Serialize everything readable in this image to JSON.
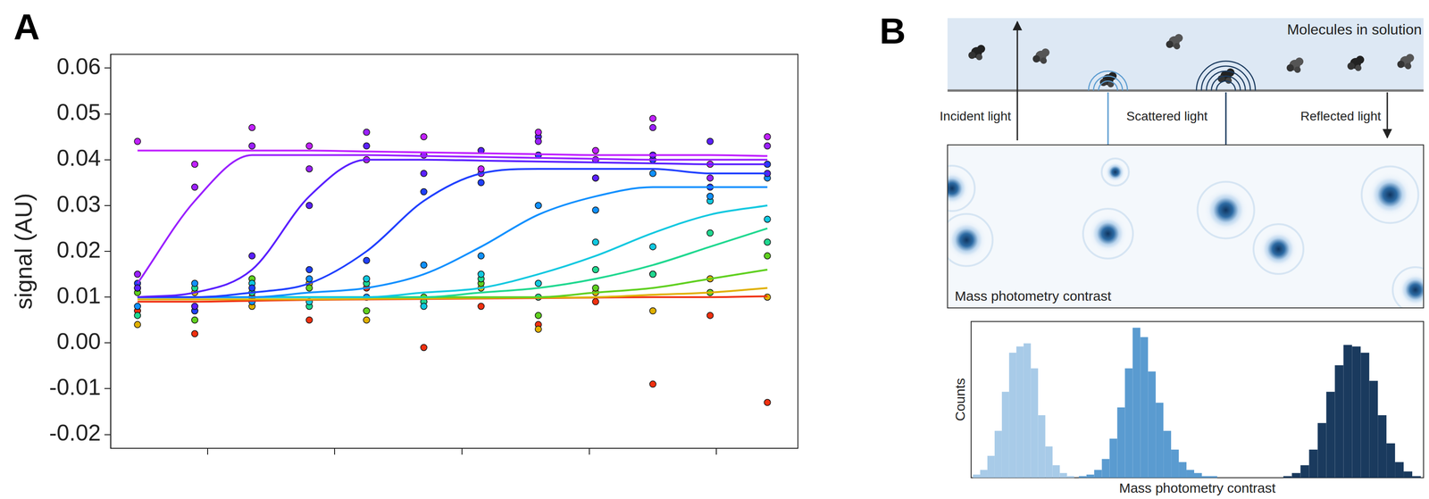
{
  "chart_data": {
    "panel": "A",
    "type": "scatter",
    "y_label": "signal (AU)",
    "x": [
      0.45,
      0.9,
      1.35,
      1.8,
      2.25,
      2.7,
      3.15,
      3.6,
      4.05,
      4.5,
      4.95,
      5.4
    ],
    "xlim": [
      0.24,
      5.64
    ],
    "xticks": [
      1,
      2,
      3,
      4,
      5
    ],
    "ylim": [
      -0.023,
      0.063
    ],
    "yticks": [
      -0.02,
      -0.01,
      {
        "value": 0,
        "label": "0.00"
      },
      0.01,
      0.02,
      0.03,
      0.04,
      0.05,
      0.06
    ],
    "tick_labels": "y",
    "grid": false,
    "marker": "circle",
    "line_style": "solid",
    "series": [
      {
        "color": "#c020ff",
        "values": [
          0.044,
          0.039,
          0.047,
          0.043,
          0.04,
          0.045,
          0.038,
          0.046,
          0.042,
          0.049,
          0.039,
          0.045
        ],
        "fit": [
          0.042,
          0.042,
          0.042,
          0.042,
          0.0418,
          0.0416,
          0.0414,
          0.0412,
          0.041,
          0.041,
          0.041,
          0.0408
        ]
      },
      {
        "color": "#9a20ff",
        "values": [
          0.015,
          0.034,
          0.043,
          0.038,
          0.046,
          0.041,
          0.037,
          0.044,
          0.04,
          0.047,
          0.036,
          0.043
        ],
        "fit": [
          0.013,
          0.031,
          0.041,
          0.041,
          0.041,
          0.0408,
          0.0406,
          0.0404,
          0.0402,
          0.04,
          0.04,
          0.04
        ]
      },
      {
        "color": "#5a20ff",
        "values": [
          0.012,
          0.008,
          0.019,
          0.03,
          0.043,
          0.037,
          0.042,
          0.045,
          0.036,
          0.041,
          0.044,
          0.037
        ],
        "fit": [
          0.01,
          0.011,
          0.016,
          0.032,
          0.04,
          0.04,
          0.0398,
          0.0396,
          0.0394,
          0.0392,
          0.039,
          0.039
        ]
      },
      {
        "color": "#2040ff",
        "values": [
          0.013,
          0.007,
          0.012,
          0.016,
          0.018,
          0.033,
          0.035,
          0.041,
          0.036,
          0.04,
          0.034,
          0.039
        ],
        "fit": [
          0.01,
          0.01,
          0.011,
          0.013,
          0.02,
          0.031,
          0.037,
          0.038,
          0.038,
          0.038,
          0.037,
          0.037
        ]
      },
      {
        "color": "#1090ff",
        "values": [
          0.008,
          0.013,
          0.009,
          0.014,
          0.01,
          0.017,
          0.019,
          0.03,
          0.029,
          0.037,
          0.032,
          0.036
        ],
        "fit": [
          0.01,
          0.01,
          0.01,
          0.011,
          0.012,
          0.015,
          0.021,
          0.028,
          0.032,
          0.034,
          0.034,
          0.034
        ]
      },
      {
        "color": "#10c8e0",
        "values": [
          0.012,
          0.007,
          0.013,
          0.009,
          0.014,
          0.008,
          0.015,
          0.013,
          0.022,
          0.021,
          0.031,
          0.027
        ],
        "fit": [
          0.01,
          0.01,
          0.01,
          0.01,
          0.01,
          0.011,
          0.012,
          0.015,
          0.019,
          0.024,
          0.028,
          0.03
        ]
      },
      {
        "color": "#20d890",
        "values": [
          0.006,
          0.012,
          0.011,
          0.008,
          0.013,
          0.009,
          0.014,
          0.01,
          0.016,
          0.015,
          0.024,
          0.022
        ],
        "fit": [
          0.01,
          0.01,
          0.01,
          0.01,
          0.01,
          0.01,
          0.011,
          0.012,
          0.014,
          0.017,
          0.021,
          0.025
        ]
      },
      {
        "color": "#60d020",
        "values": [
          0.011,
          0.005,
          0.014,
          0.012,
          0.007,
          0.01,
          0.013,
          0.006,
          0.012,
          0.015,
          0.011,
          0.019
        ],
        "fit": [
          0.01,
          0.01,
          0.01,
          0.01,
          0.01,
          0.01,
          0.01,
          0.01,
          0.011,
          0.012,
          0.014,
          0.016
        ]
      },
      {
        "color": "#e0b000",
        "values": [
          0.004,
          0.011,
          0.008,
          0.013,
          0.005,
          0.009,
          0.012,
          0.003,
          0.011,
          0.007,
          0.014,
          0.01
        ],
        "fit": [
          0.0095,
          0.0095,
          0.0095,
          0.0095,
          0.0096,
          0.0097,
          0.0098,
          0.0099,
          0.01,
          0.0105,
          0.011,
          0.012
        ]
      },
      {
        "color": "#f03010",
        "values": [
          0.007,
          0.002,
          0.01,
          0.005,
          0.012,
          -0.001,
          0.008,
          0.004,
          0.009,
          -0.009,
          0.006,
          -0.013
        ],
        "fit": [
          0.009,
          0.009,
          0.0092,
          0.0094,
          0.0095,
          0.0096,
          0.0097,
          0.0098,
          0.0099,
          0.01,
          0.01,
          0.0102
        ]
      }
    ]
  },
  "diagram": {
    "panel": "B",
    "labels": {
      "top": "Molecules in solution",
      "incident": "Incident light",
      "scattered": "Scattered light",
      "reflected": "Reflected light",
      "image": "Mass photometry contrast"
    },
    "histogram": {
      "y_label": "Counts",
      "x_label": "Mass photometry contrast",
      "xlim": [
        0,
        100
      ],
      "ylim": [
        0,
        100
      ],
      "tick_labels": false,
      "series": [
        {
          "color": "#a8cbe8",
          "bins": [
            0.4,
            2.0,
            3.6,
            5.2,
            6.8,
            8.4,
            10.0,
            11.6,
            13.2,
            14.8,
            16.4,
            18.0,
            19.6,
            21.2,
            22.8
          ],
          "counts": [
            2,
            5,
            14,
            30,
            55,
            80,
            84,
            86,
            70,
            40,
            20,
            8,
            3,
            1
          ]
        },
        {
          "color": "#5a9bd0",
          "bins": [
            23.8,
            25.5,
            27.2,
            28.9,
            30.6,
            32.3,
            34.0,
            35.7,
            37.4,
            39.1,
            40.8,
            42.5,
            44.2,
            45.9,
            47.6,
            49.3,
            51.0,
            52.7,
            54.4
          ],
          "counts": [
            1,
            2,
            5,
            12,
            25,
            45,
            70,
            96,
            90,
            68,
            48,
            30,
            18,
            10,
            5,
            3,
            1,
            1
          ]
        },
        {
          "color": "#1a3a5e",
          "bins": [
            69.0,
            70.9,
            72.8,
            74.7,
            76.6,
            78.5,
            80.4,
            82.3,
            84.2,
            86.1,
            88.0,
            89.9,
            91.8,
            93.7,
            95.6,
            97.5,
            99.4
          ],
          "counts": [
            1,
            3,
            8,
            18,
            35,
            55,
            72,
            85,
            84,
            80,
            62,
            40,
            22,
            10,
            4,
            1
          ]
        }
      ]
    }
  }
}
